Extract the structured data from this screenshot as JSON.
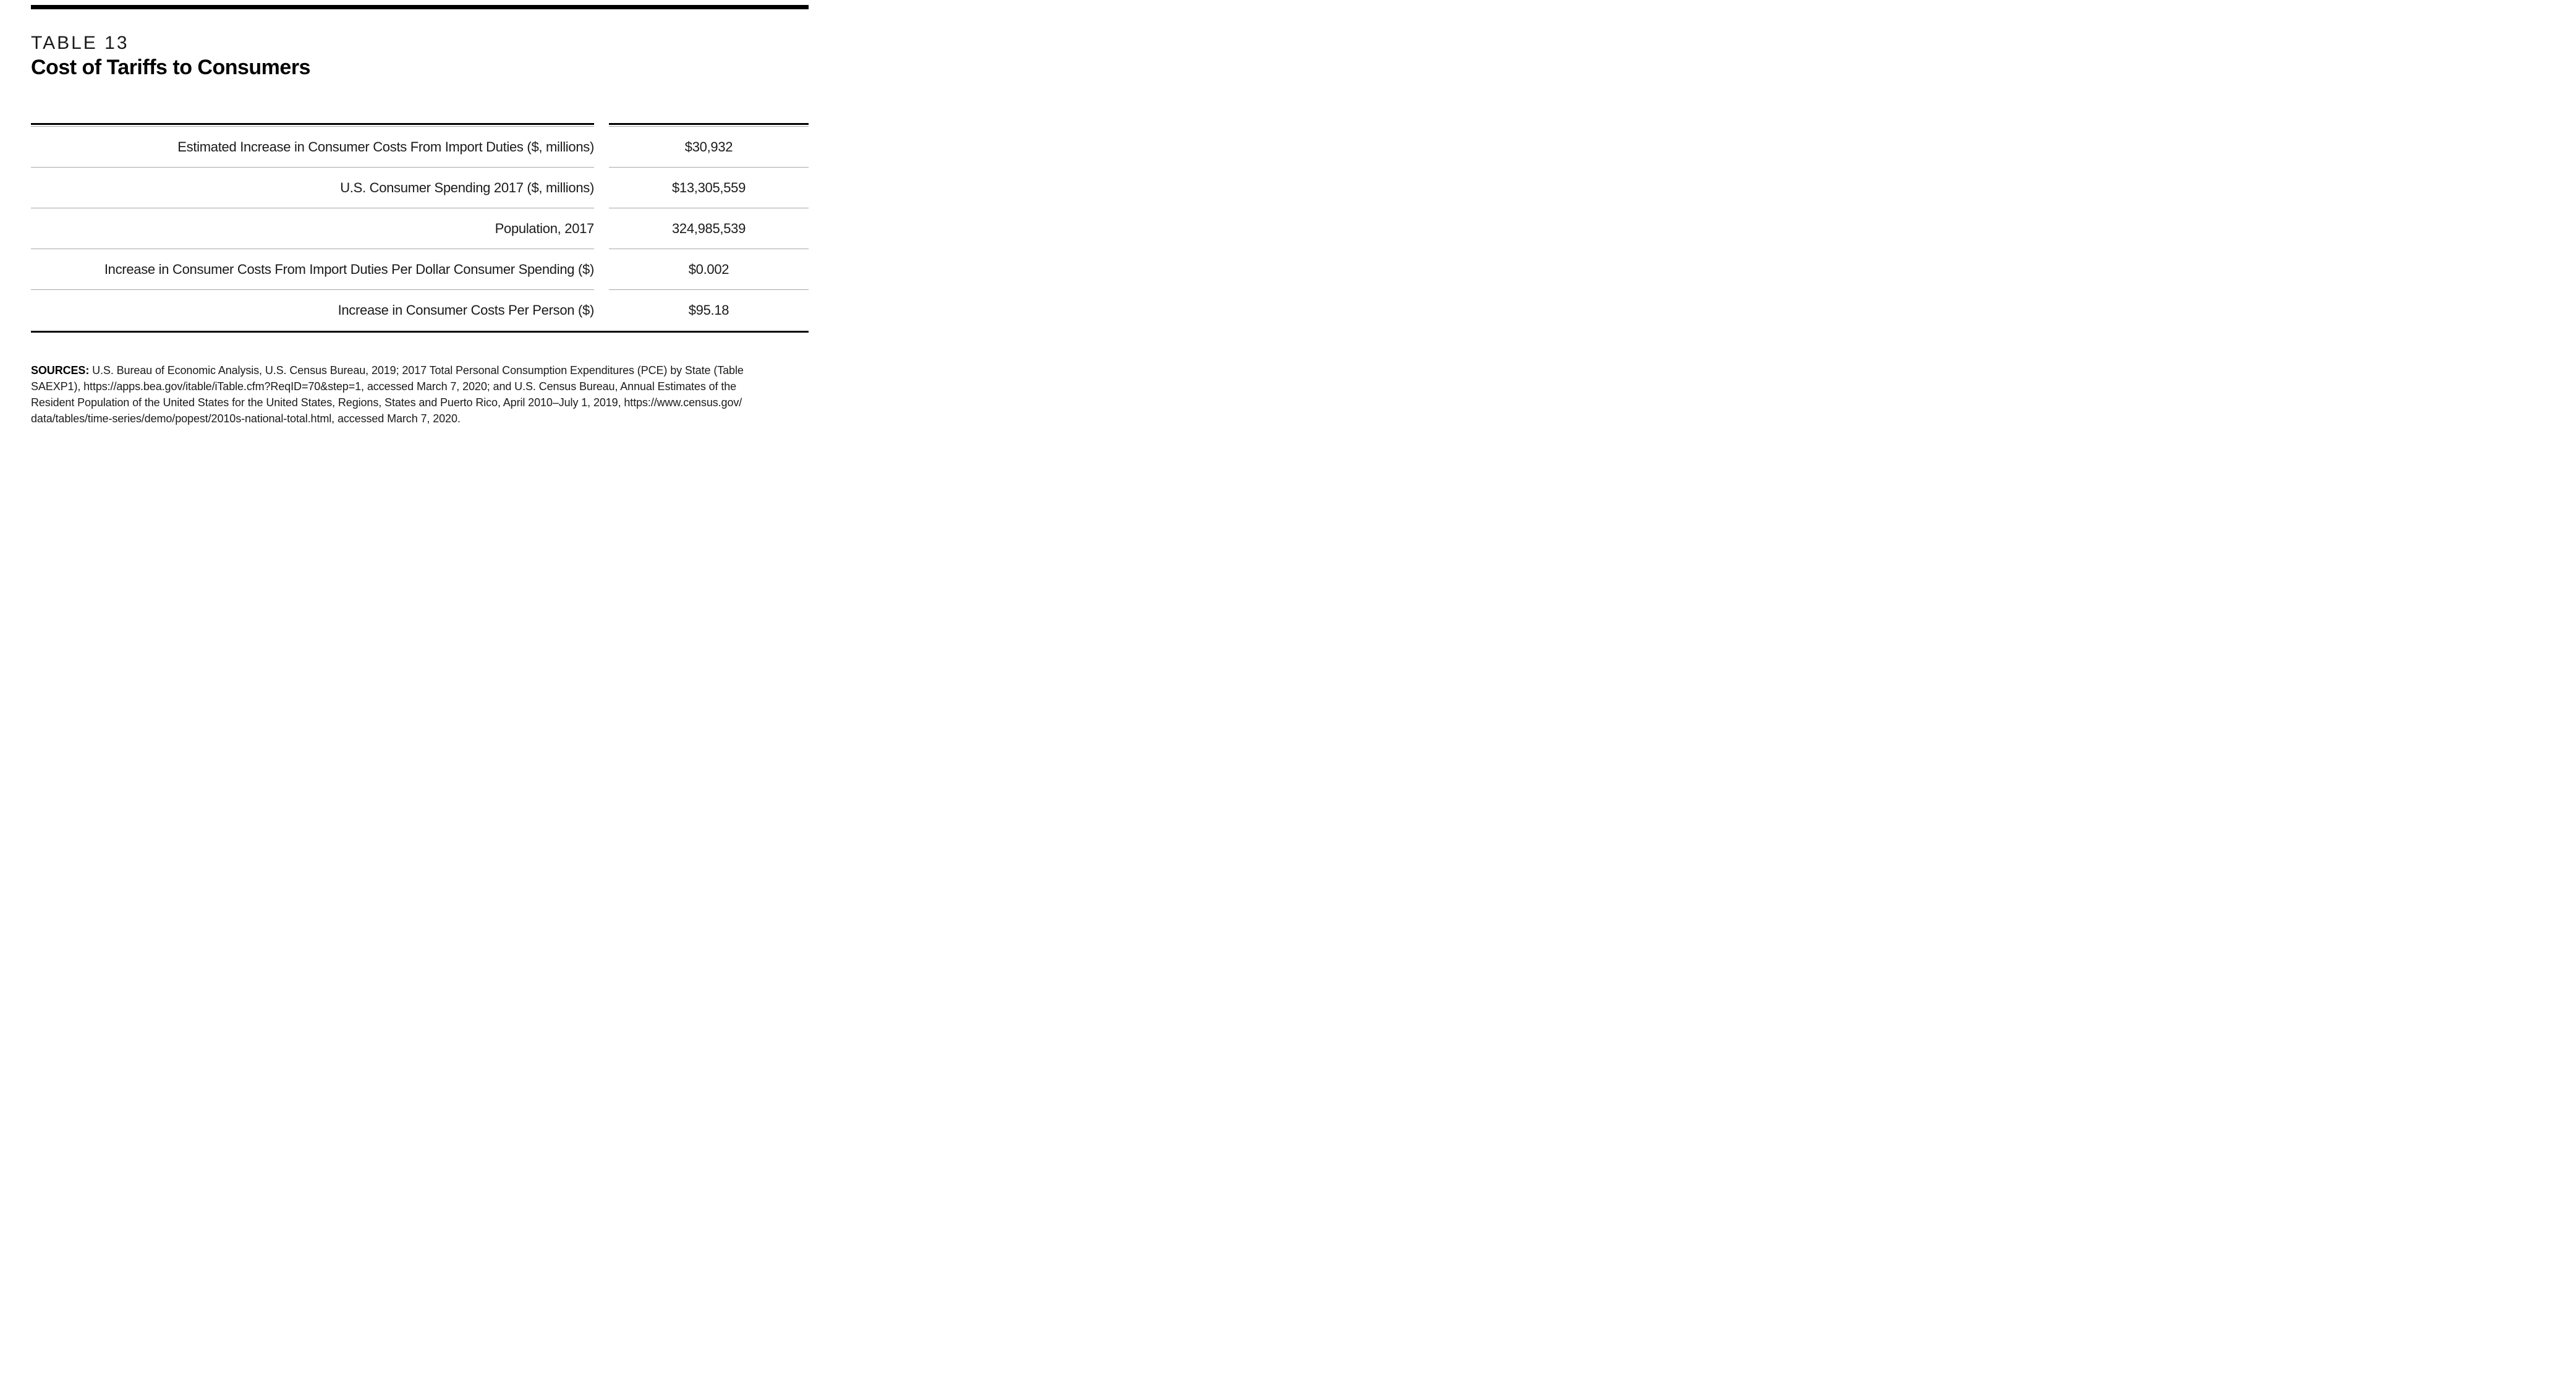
{
  "page": {
    "table_label": "TABLE 13",
    "title": "Cost of Tariffs to Consumers"
  },
  "table": {
    "rows": [
      {
        "label": "Estimated Increase in Consumer Costs From Import Duties ($, millions)",
        "value": "$30,932"
      },
      {
        "label": "U.S. Consumer Spending 2017 ($, millions)",
        "value": "$13,305,559"
      },
      {
        "label": "Population, 2017",
        "value": "324,985,539"
      },
      {
        "label": "Increase in Consumer Costs From Import Duties Per Dollar Consumer Spending ($)",
        "value": "$0.002"
      },
      {
        "label": "Increase in Consumer Costs Per Person ($)",
        "value": "$95.18"
      }
    ]
  },
  "sources": {
    "heading": "SOURCES:",
    "lines": [
      "U.S. Bureau of Economic Analysis, U.S. Census Bureau, 2019; 2017 Total Personal Consumption Expenditures (PCE) by State (Table",
      "SAEXP1), https://apps.bea.gov/itable/iTable.cfm?ReqID=70&step=1, accessed March 7, 2020; and U.S. Census Bureau, Annual Estimates of the",
      "Resident Population of the United States for the United States, Regions, States and Puerto Rico, April 2010–July 1, 2019, https://www.census.gov/",
      "data/tables/time-series/demo/popest/2010s-national-total.html, accessed March 7, 2020."
    ]
  },
  "colors": {
    "rule_black": "#000000",
    "rule_gray": "#a8a8a8",
    "text": "#1a1a1a"
  },
  "chart_data": {
    "type": "table",
    "title": "Cost of Tariffs to Consumers",
    "categories": [
      "Estimated Increase in Consumer Costs From Import Duties ($, millions)",
      "U.S. Consumer Spending 2017 ($, millions)",
      "Population, 2017",
      "Increase in Consumer Costs From Import Duties Per Dollar Consumer Spending ($)",
      "Increase in Consumer Costs Per Person ($)"
    ],
    "values": [
      30932,
      13305559,
      324985539,
      0.002,
      95.18
    ]
  }
}
